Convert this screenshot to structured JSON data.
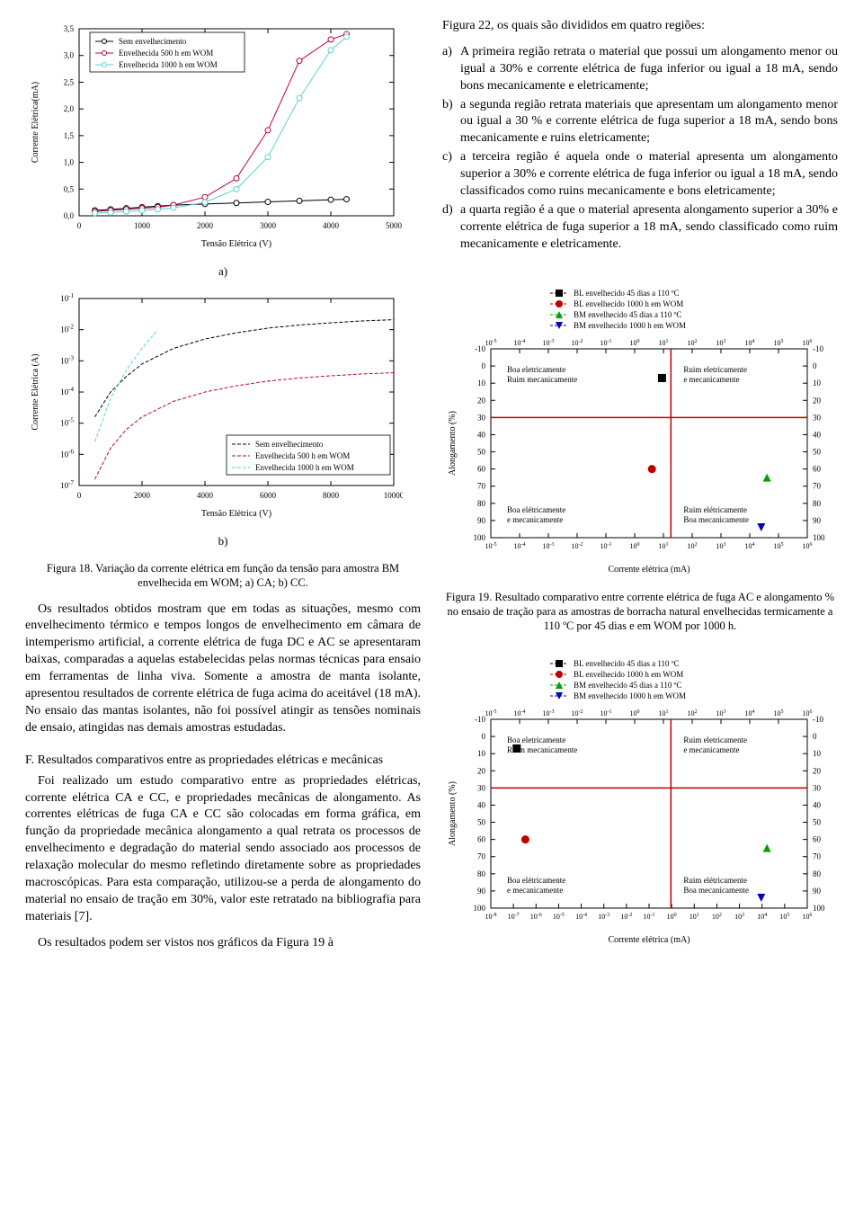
{
  "chart_a": {
    "type": "line",
    "title_label": "a)",
    "xlabel": "Tensão Elétrica (V)",
    "ylabel": "Corrente Elétrica(mA)",
    "xlim": [
      0,
      5000
    ],
    "xtick_step": 1000,
    "ylim": [
      0.0,
      3.5
    ],
    "ytick_step": 0.5,
    "ytick_format": "comma",
    "background_color": "#ffffff",
    "border_color": "#000000",
    "series": [
      {
        "name": "Sem envelhecimento",
        "color": "#000000",
        "marker": "circle-open",
        "x": [
          250,
          500,
          750,
          1000,
          1250,
          1500,
          2000,
          2500,
          3000,
          3500,
          4000,
          4250
        ],
        "y": [
          0.1,
          0.12,
          0.14,
          0.16,
          0.18,
          0.2,
          0.22,
          0.24,
          0.26,
          0.28,
          0.3,
          0.31
        ]
      },
      {
        "name": "Envelhecida 500 h em WOM",
        "color": "#c00040",
        "marker": "circle-open",
        "x": [
          250,
          500,
          750,
          1000,
          1250,
          1500,
          2000,
          2500,
          3000,
          3500,
          4000,
          4250
        ],
        "y": [
          0.08,
          0.1,
          0.12,
          0.14,
          0.16,
          0.2,
          0.35,
          0.7,
          1.6,
          2.9,
          3.3,
          3.4
        ]
      },
      {
        "name": "Envelhecida 1000 h em WOM",
        "color": "#5fd0d0",
        "marker": "circle-open",
        "x": [
          250,
          500,
          750,
          1000,
          1250,
          1500,
          2000,
          2500,
          3000,
          3500,
          4000,
          4250
        ],
        "y": [
          0.05,
          0.06,
          0.08,
          0.1,
          0.12,
          0.15,
          0.25,
          0.5,
          1.1,
          2.2,
          3.1,
          3.35
        ]
      }
    ],
    "marker_size": 3,
    "legend_box": true
  },
  "chart_b": {
    "type": "line-log",
    "title_label": "b)",
    "xlabel": "Tensão Elétrica (V)",
    "ylabel": "Corrente Elétrica (A)",
    "xlim": [
      0,
      10000
    ],
    "xtick_step": 2000,
    "ylim_exp": [
      -7,
      -1
    ],
    "ytick_exp_step": 1,
    "background_color": "#ffffff",
    "border_color": "#000000",
    "series": [
      {
        "name": "Sem envelhecimento",
        "color": "#000000",
        "dash": "4,2",
        "x": [
          500,
          1000,
          1500,
          2000,
          3000,
          4000,
          5000,
          6000,
          7000,
          8000,
          9000,
          10000
        ],
        "y_exp": [
          -4.8,
          -4.0,
          -3.5,
          -3.1,
          -2.6,
          -2.3,
          -2.1,
          -1.95,
          -1.85,
          -1.78,
          -1.72,
          -1.68
        ]
      },
      {
        "name": "Envelhecida 500 h em WOM",
        "color": "#c00040",
        "dash": "4,2",
        "x": [
          500,
          1000,
          1500,
          2000,
          3000,
          4000,
          5000,
          6000,
          7000,
          8000,
          9000,
          10000
        ],
        "y_exp": [
          -6.8,
          -5.8,
          -5.2,
          -4.8,
          -4.3,
          -4.0,
          -3.8,
          -3.65,
          -3.55,
          -3.48,
          -3.42,
          -3.38
        ]
      },
      {
        "name": "Envelhecida 1000 h em WOM",
        "color": "#5fd0d0",
        "dash": "4,2",
        "x": [
          500,
          1000,
          1500,
          2000,
          2500
        ],
        "y_exp": [
          -5.6,
          -4.2,
          -3.3,
          -2.6,
          -2.0
        ]
      }
    ],
    "legend_box": true
  },
  "fig18_caption": "Figura 18. Variação da corrente elétrica em função da tensão para amostra BM envelhecida em WOM; a) CA; b) CC.",
  "para1": "Os resultados obtidos mostram que em todas as situações, mesmo com envelhecimento térmico e tempos longos de envelhecimento em câmara de intemperismo artificial, a corrente elétrica de fuga DC e AC se apresentaram baixas, comparadas a aquelas estabelecidas pelas normas técnicas para ensaio em ferramentas de linha viva. Somente a amostra de manta isolante, apresentou resultados de corrente elétrica de fuga acima do aceitável (18 mA). No ensaio das mantas isolantes, não foi possível atingir as tensões nominais de ensaio, atingidas nas demais amostras estudadas.",
  "sectionF": "F. Resultados comparativos entre as propriedades elétricas e mecânicas",
  "para2": "Foi realizado um estudo comparativo entre as propriedades elétricas, corrente elétrica CA e CC, e propriedades mecânicas de alongamento. As correntes elétricas de fuga CA e CC são colocadas em forma gráfica, em função da propriedade mecânica alongamento a qual retrata os processos de envelhecimento e degradação do material sendo associado aos processos de relaxação molecular do mesmo refletindo diretamente sobre as propriedades macroscópicas. Para esta comparação, utilizou-se a perda de alongamento do material no ensaio de tração em 30%, valor este retratado na bibliografia para materiais [7].",
  "para3": "Os resultados podem ser vistos nos gráficos da Figura 19 à",
  "right_intro": "Figura 22, os quais são divididos em quatro regiões:",
  "regions": [
    {
      "lbl": "a)",
      "txt": "A primeira região retrata o material que possui um alongamento menor ou igual a 30% e corrente elétrica de fuga inferior ou igual a 18 mA, sendo bons mecanicamente e eletricamente;"
    },
    {
      "lbl": "b)",
      "txt": "a segunda região retrata materiais que apresentam um alongamento menor ou igual a 30 % e corrente elétrica de fuga superior a 18 mA, sendo bons mecanicamente e ruins eletricamente;"
    },
    {
      "lbl": "c)",
      "txt": "a terceira região é aquela onde o material apresenta um alongamento superior a 30% e corrente elétrica de fuga inferior ou igual a 18 mA, sendo classificados como ruins mecanicamente e bons eletricamente;"
    },
    {
      "lbl": "d)",
      "txt": "a quarta região é a que o material apresenta alongamento superior a 30% e corrente elétrica de fuga superior a 18 mA, sendo classificado como ruim mecanicamente e eletricamente."
    }
  ],
  "chart_scatter_common": {
    "xlabel": "Corrente elétrica (mA)",
    "ylabel": "Alongamento (%)",
    "ylim": [
      -10,
      100
    ],
    "ytick_step": 10,
    "border_color": "#000000",
    "divider_color": "#c00000",
    "quadrant_labels": {
      "tl": "Boa eletricamente\nRuim mecanicamente",
      "tr": "Ruim eletricamente\ne mecanicamente",
      "bl": "Boa elétricamente\ne mecanicamente",
      "br": "Ruim elétricamente\nBoa mecanicamente"
    },
    "legend": [
      {
        "name": "BL envelhecido 45 dias a 110 ºC",
        "marker": "square",
        "color": "#000000"
      },
      {
        "name": "BL envelhecido 1000 h em WOM",
        "marker": "circle",
        "color": "#c00000"
      },
      {
        "name": "BM envelhecido 45 dias a 110 ºC",
        "marker": "triangle-up",
        "color": "#00a000"
      },
      {
        "name": "BM envelhecido 1000 h em WOM",
        "marker": "triangle-down",
        "color": "#0000c0"
      }
    ]
  },
  "chart_19": {
    "x_exp_lim": [
      -5,
      6
    ],
    "hline_y": 30,
    "vline_x_exp": 1.26,
    "points": [
      {
        "series": 0,
        "x_exp": 0.95,
        "y": 7
      },
      {
        "series": 1,
        "x_exp": 0.6,
        "y": 60
      },
      {
        "series": 2,
        "x_exp": 4.6,
        "y": 65
      },
      {
        "series": 3,
        "x_exp": 4.4,
        "y": 94
      }
    ]
  },
  "fig19_caption": "Figura 19. Resultado comparativo entre corrente elétrica de fuga AC e alongamento % no ensaio de tração para as amostras de borracha natural envelhecidas termicamente a 110 ºC por 45 dias e em WOM por 1000 h.",
  "chart_20": {
    "x_exp_lim_top": [
      -5,
      6
    ],
    "x_exp_lim_bottom": [
      -8,
      6
    ],
    "hline_y": 30,
    "vline_x_exp": 1.26,
    "points": [
      {
        "series": 0,
        "x_exp": -4.1,
        "y": 7
      },
      {
        "series": 1,
        "x_exp": -3.8,
        "y": 60
      },
      {
        "series": 2,
        "x_exp": 4.6,
        "y": 65
      },
      {
        "series": 3,
        "x_exp": 4.4,
        "y": 94
      }
    ]
  }
}
